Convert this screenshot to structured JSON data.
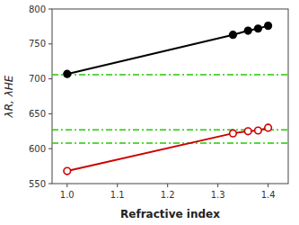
{
  "chart_data": {
    "type": "line",
    "xlabel": "Refractive index",
    "ylabel": "λR, λHE",
    "x": [
      1.0,
      1.33,
      1.36,
      1.38,
      1.4
    ],
    "series": [
      {
        "color": "#000000",
        "marker": "circle",
        "line_style": "solid",
        "values": [
          707,
          763,
          769,
          772,
          776
        ]
      },
      {
        "color": "#cc0000",
        "marker": "open-circle",
        "line_style": "solid",
        "values": [
          568,
          622,
          625,
          626,
          630
        ]
      }
    ],
    "hlines": {
      "color": "#22cc00",
      "line_style": "dashdot",
      "values": [
        706,
        627,
        608
      ]
    },
    "xlim": [
      0.97,
      1.44
    ],
    "ylim": [
      550,
      800
    ],
    "xticks": [
      {
        "value": 1.0,
        "label": "1.0"
      },
      1.1,
      1.2,
      1.3,
      1.4
    ],
    "yticks": [
      550,
      600,
      650,
      700,
      750,
      800
    ],
    "grid": false
  }
}
